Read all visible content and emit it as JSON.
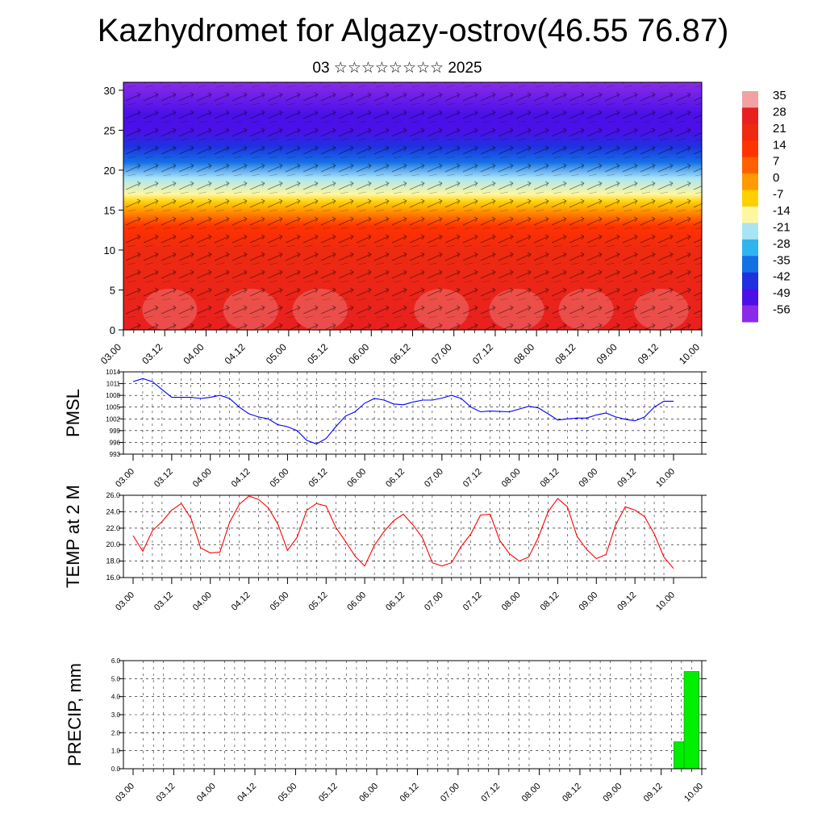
{
  "title": "Kazhydromet for Algazy-ostrov(46.55 76.87)",
  "subtitle": "03 ☆☆☆☆☆☆☆☆ 2025",
  "time_ticks": [
    "03.00",
    "03.12",
    "04.00",
    "04.12",
    "05.00",
    "05.12",
    "06.00",
    "06.12",
    "07.00",
    "07.12",
    "08.00",
    "08.12",
    "09.00",
    "09.12",
    "10.00"
  ],
  "colors": {
    "pmsl_line": "#0000ff",
    "temp_line": "#ff0000",
    "precip_bar": "#00ee00",
    "grid": "#000000"
  },
  "chart_data": [
    {
      "id": "cross_section",
      "type": "heatmap",
      "yticks": [
        "0",
        "5",
        "10",
        "15",
        "20",
        "25",
        "30"
      ],
      "ylim": [
        0,
        31
      ],
      "colorbar_labels": [
        "35",
        "28",
        "21",
        "14",
        "7",
        "0",
        "-7",
        "-14",
        "-21",
        "-28",
        "-35",
        "-42",
        "-49",
        "-56"
      ],
      "colorbar_colors": [
        "#f2a2a2",
        "#e82020",
        "#ee2a10",
        "#ff3300",
        "#ff6000",
        "#ff9a00",
        "#ffd000",
        "#fff7a0",
        "#a8e4f6",
        "#30b4f0",
        "#1570e6",
        "#2030e0",
        "#4b10e8",
        "#8a2be8"
      ],
      "vertical_profile": [
        {
          "y": 0,
          "value": 30
        },
        {
          "y": 10,
          "value": 24
        },
        {
          "y": 13,
          "value": 12
        },
        {
          "y": 15,
          "value": 0
        },
        {
          "y": 16,
          "value": -10
        },
        {
          "y": 17,
          "value": -14
        },
        {
          "y": 19,
          "value": -24
        },
        {
          "y": 21,
          "value": -33
        },
        {
          "y": 23,
          "value": -42
        },
        {
          "y": 25,
          "value": -48
        },
        {
          "y": 27,
          "value": -52
        },
        {
          "y": 31,
          "value": -56
        }
      ],
      "grid": true
    },
    {
      "id": "pmsl",
      "type": "line",
      "ylabel": "PMSL",
      "yticks": [
        "1014",
        "1011",
        "1008",
        "1005",
        "1002",
        "999",
        "996",
        "993"
      ],
      "ylim": [
        993,
        1014
      ],
      "x": [
        0,
        0.125,
        0.25,
        0.375,
        0.5,
        0.625,
        0.75,
        0.875,
        1.0,
        1.125,
        1.25,
        1.375,
        1.5,
        1.625,
        1.75,
        1.875,
        2.0,
        2.125,
        2.25,
        2.375,
        2.5,
        2.625,
        2.75,
        2.875,
        3.0,
        3.125,
        3.25,
        3.375,
        3.5,
        3.625,
        3.75,
        3.875,
        4.0,
        4.125,
        4.25,
        4.375,
        4.5,
        4.625,
        4.75,
        4.875,
        5.0,
        5.125,
        5.25,
        5.375,
        5.5,
        5.625,
        5.75,
        5.875,
        6.0,
        6.125,
        6.25,
        6.375,
        6.5,
        6.625,
        6.75,
        6.875,
        7.0
      ],
      "values": [
        1011.5,
        1012.3,
        1011.5,
        1009.5,
        1007.5,
        1007.5,
        1007.5,
        1007.2,
        1007.5,
        1008,
        1007.2,
        1005,
        1003.3,
        1002.5,
        1002,
        1000.5,
        1000,
        999,
        996.5,
        995.6,
        997,
        1000,
        1002.7,
        1003.8,
        1006,
        1007.2,
        1006.8,
        1005.8,
        1005.6,
        1006.3,
        1006.8,
        1006.8,
        1007.3,
        1008,
        1007.2,
        1005,
        1003.8,
        1004,
        1003.9,
        1003.8,
        1004.5,
        1005.2,
        1004.8,
        1003.3,
        1001.7,
        1002,
        1002.2,
        1002.2,
        1003,
        1003.5,
        1002.5,
        1001.9,
        1001.5,
        1002.5,
        1005,
        1006.5,
        1006.5
      ],
      "color": "#0000ff",
      "grid": true
    },
    {
      "id": "temp",
      "type": "line",
      "ylabel": "TEMP at 2 M",
      "yticks": [
        "26.0",
        "24.0",
        "22.0",
        "20.0",
        "18.0",
        "16.0"
      ],
      "ylim": [
        16,
        26
      ],
      "x": [
        0,
        0.125,
        0.25,
        0.375,
        0.5,
        0.625,
        0.75,
        0.875,
        1.0,
        1.125,
        1.25,
        1.375,
        1.5,
        1.625,
        1.75,
        1.875,
        2.0,
        2.125,
        2.25,
        2.375,
        2.5,
        2.625,
        2.75,
        2.875,
        3.0,
        3.125,
        3.25,
        3.375,
        3.5,
        3.625,
        3.75,
        3.875,
        4.0,
        4.125,
        4.25,
        4.375,
        4.5,
        4.625,
        4.75,
        4.875,
        5.0,
        5.125,
        5.25,
        5.375,
        5.5,
        5.625,
        5.75,
        5.875,
        6.0,
        6.125,
        6.25,
        6.375,
        6.5,
        6.625,
        6.75,
        6.875,
        7.0
      ],
      "values": [
        21.1,
        19.2,
        21.7,
        22.8,
        24.2,
        25,
        23.2,
        19.6,
        19,
        19.1,
        22.7,
        24.9,
        25.9,
        25.5,
        24.5,
        22.5,
        19.3,
        20.9,
        24.2,
        25,
        24.7,
        22.1,
        20.4,
        18.6,
        17.4,
        19.9,
        21.6,
        22.9,
        23.7,
        22.4,
        20.8,
        17.8,
        17.4,
        17.8,
        19.8,
        21.3,
        23.6,
        23.7,
        20.5,
        18.9,
        18,
        18.5,
        20.9,
        24,
        25.6,
        24.6,
        21,
        19.4,
        18.3,
        18.8,
        22.4,
        24.6,
        24.2,
        23.4,
        21.3,
        18.5,
        17.1
      ],
      "color": "#ff0000",
      "grid": true
    },
    {
      "id": "precip",
      "type": "bar",
      "ylabel": "PRECIP, mm",
      "yticks": [
        "6.0",
        "5.0",
        "4.0",
        "3.0",
        "2.0",
        "1.0",
        "0.0"
      ],
      "ylim": [
        0,
        6
      ],
      "x": [
        6.75,
        6.875
      ],
      "values": [
        1.5,
        5.4
      ],
      "color": "#00ee00",
      "grid": true
    }
  ]
}
